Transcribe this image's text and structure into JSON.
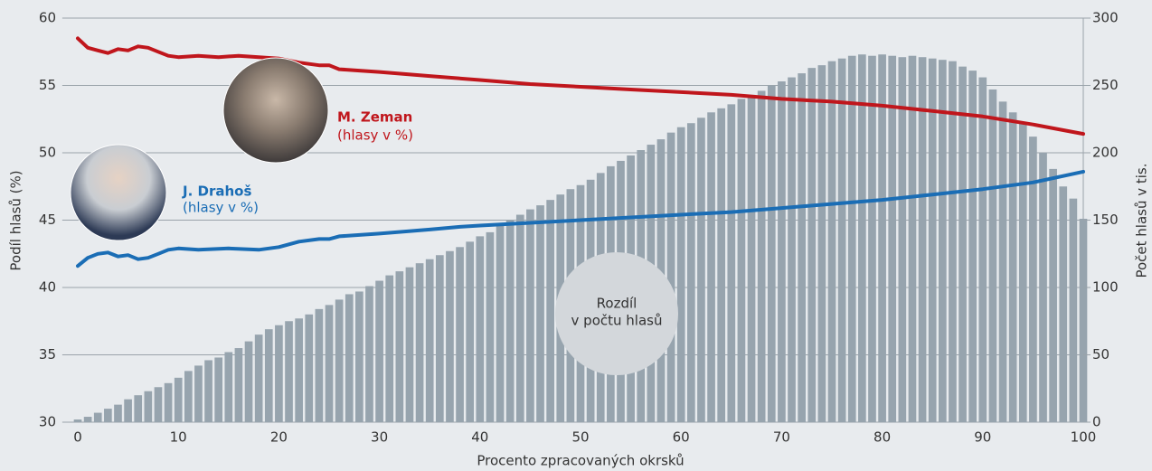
{
  "chart_data": {
    "type": "bar",
    "x": [
      0,
      1,
      2,
      3,
      4,
      5,
      6,
      7,
      8,
      9,
      10,
      11,
      12,
      13,
      14,
      15,
      16,
      17,
      18,
      19,
      20,
      21,
      22,
      23,
      24,
      25,
      26,
      27,
      28,
      29,
      30,
      31,
      32,
      33,
      34,
      35,
      36,
      37,
      38,
      39,
      40,
      41,
      42,
      43,
      44,
      45,
      46,
      47,
      48,
      49,
      50,
      51,
      52,
      53,
      54,
      55,
      56,
      57,
      58,
      59,
      60,
      61,
      62,
      63,
      64,
      65,
      66,
      67,
      68,
      69,
      70,
      71,
      72,
      73,
      74,
      75,
      76,
      77,
      78,
      79,
      80,
      81,
      82,
      83,
      84,
      85,
      86,
      87,
      88,
      89,
      90,
      91,
      92,
      93,
      94,
      95,
      96,
      97,
      98,
      99,
      100
    ],
    "values": [
      2,
      4,
      7,
      10,
      13,
      17,
      20,
      23,
      26,
      29,
      33,
      38,
      42,
      46,
      48,
      52,
      55,
      60,
      65,
      69,
      72,
      75,
      77,
      80,
      84,
      87,
      91,
      95,
      97,
      101,
      105,
      109,
      112,
      115,
      118,
      121,
      124,
      127,
      130,
      134,
      138,
      141,
      146,
      150,
      154,
      158,
      161,
      165,
      169,
      173,
      176,
      180,
      185,
      190,
      194,
      198,
      202,
      206,
      210,
      215,
      219,
      222,
      226,
      230,
      233,
      236,
      240,
      243,
      246,
      250,
      253,
      256,
      259,
      263,
      265,
      268,
      270,
      272,
      273,
      272,
      273,
      272,
      271,
      272,
      271,
      270,
      269,
      268,
      264,
      261,
      256,
      247,
      238,
      230,
      222,
      212,
      200,
      188,
      175,
      166,
      151
    ],
    "color": "#97a4ae",
    "axis": "y2",
    "series": [
      {
        "name": "M. Zeman",
        "color": "#c0161c",
        "x": [
          0,
          1,
          2,
          3,
          4,
          5,
          6,
          7,
          8,
          9,
          10,
          12,
          14,
          16,
          18,
          20,
          22,
          24,
          25,
          26,
          28,
          30,
          35,
          40,
          45,
          50,
          55,
          60,
          65,
          70,
          75,
          80,
          85,
          90,
          95,
          100
        ],
        "values": [
          58.5,
          57.8,
          57.6,
          57.4,
          57.7,
          57.6,
          57.9,
          57.8,
          57.5,
          57.2,
          57.1,
          57.2,
          57.1,
          57.2,
          57.1,
          57.0,
          56.7,
          56.5,
          56.5,
          56.2,
          56.1,
          56.0,
          55.7,
          55.4,
          55.1,
          54.9,
          54.7,
          54.5,
          54.3,
          54.0,
          53.8,
          53.5,
          53.1,
          52.7,
          52.1,
          51.4
        ]
      },
      {
        "name": "J. Drahoš",
        "color": "#1a6db5",
        "x": [
          0,
          1,
          2,
          3,
          4,
          5,
          6,
          7,
          8,
          9,
          10,
          12,
          15,
          18,
          20,
          22,
          24,
          25,
          26,
          30,
          35,
          38,
          40,
          45,
          50,
          55,
          60,
          65,
          70,
          75,
          80,
          85,
          90,
          95,
          100
        ],
        "values": [
          41.6,
          42.2,
          42.5,
          42.6,
          42.3,
          42.4,
          42.1,
          42.2,
          42.5,
          42.8,
          42.9,
          42.8,
          42.9,
          42.8,
          43.0,
          43.4,
          43.6,
          43.6,
          43.8,
          44.0,
          44.3,
          44.5,
          44.6,
          44.8,
          45.0,
          45.2,
          45.4,
          45.6,
          45.9,
          46.2,
          46.5,
          46.9,
          47.3,
          47.8,
          48.6
        ]
      }
    ],
    "xlabel": "Procento zpracovaných okrsků",
    "ylabel": "Podíl hlasů (%)",
    "y2label": "Počet hlasů v tis.",
    "xlim": [
      -1,
      100
    ],
    "xticks": [
      0,
      10,
      20,
      30,
      40,
      50,
      60,
      70,
      80,
      90,
      100
    ],
    "ylim": [
      30,
      60
    ],
    "yticks": [
      30,
      35,
      40,
      45,
      50,
      55,
      60
    ],
    "y2lim": [
      0,
      300
    ],
    "y2ticks": [
      0,
      50,
      100,
      150,
      200,
      250,
      300
    ],
    "grid": true,
    "annotations": {
      "zeman_unit": "(hlasy v %)",
      "drahos_unit": "(hlasy v %)",
      "difference": [
        "Rozdíl",
        "v počtu hlasů"
      ]
    }
  }
}
